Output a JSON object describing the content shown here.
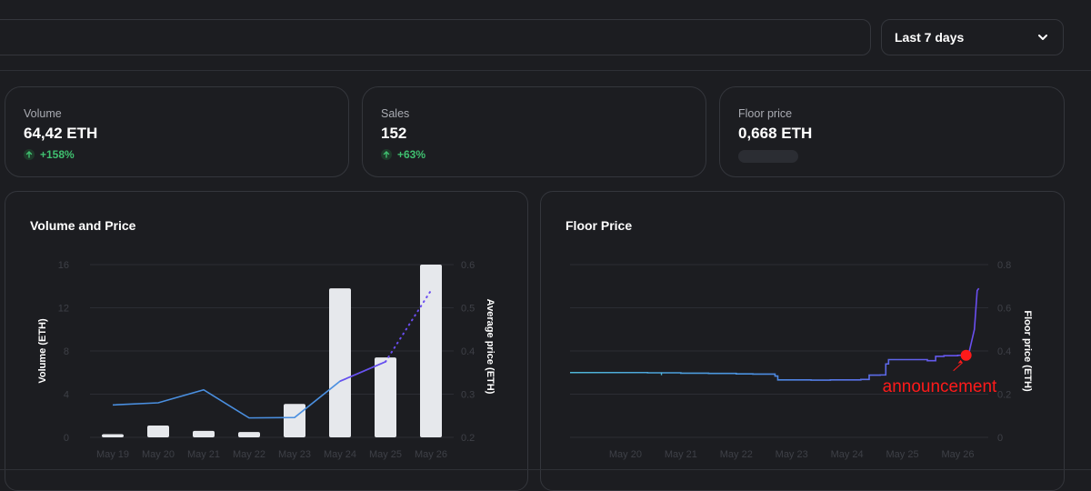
{
  "header": {
    "range_label": "Last 7 days",
    "range_icon": "chevron-down-icon"
  },
  "stats": [
    {
      "label": "Volume",
      "value": "64,42 ETH",
      "change": "+158%"
    },
    {
      "label": "Sales",
      "value": "152",
      "change": "+63%"
    },
    {
      "label": "Floor price",
      "value": "0,668 ETH",
      "change": ""
    }
  ],
  "colors": {
    "positive": "#3fbf6f",
    "bar": "#e6e8ec",
    "line_blue": "#4a8fe0",
    "line_purple": "#6a4df0",
    "annotation": "#ff1a1a"
  },
  "chart_data": [
    {
      "type": "bar",
      "title": "Volume and Price",
      "categories": [
        "May 19",
        "May 20",
        "May 21",
        "May 22",
        "May 23",
        "May 24",
        "May 25",
        "May 26"
      ],
      "series": [
        {
          "name": "",
          "axis": "left",
          "kind": "bar",
          "values": [
            0.3,
            1.1,
            0.6,
            0.5,
            3.1,
            13.8,
            7.4,
            16
          ]
        },
        {
          "name": "",
          "axis": "right",
          "kind": "line",
          "values": [
            0.275,
            0.28,
            0.31,
            0.245,
            0.246,
            0.33,
            0.375,
            0.54
          ]
        }
      ],
      "ylabel": "Volume (ETH)",
      "ylabel_right": "Average price (ETH)",
      "yticks": [
        "0",
        "4",
        "8",
        "12",
        "16"
      ],
      "yticks_right": [
        "0.2",
        "0.3",
        "0.4",
        "0.5",
        "0.6"
      ],
      "ylim": [
        0,
        16
      ],
      "ylim_right": [
        0.2,
        0.6
      ],
      "grid": true
    },
    {
      "type": "line",
      "title": "Floor Price",
      "xticks": [
        "May 20",
        "May 21",
        "May 22",
        "May 23",
        "May 24",
        "May 25",
        "May 26"
      ],
      "ylabel_right": "Floor price (ETH)",
      "yticks_right": [
        "0",
        "0.2",
        "0.4",
        "0.6",
        "0.8"
      ],
      "ylim_right": [
        0,
        0.8
      ],
      "grid": true,
      "x": [
        19.0,
        19.5,
        19.8,
        20.0,
        20.4,
        20.85,
        21.0,
        21.5,
        22.0,
        22.3,
        22.7,
        22.75,
        23.05,
        23.3,
        23.35,
        23.6,
        23.7,
        24.0,
        24.25,
        24.4,
        24.6,
        24.7,
        24.75,
        25.0,
        25.2,
        25.4,
        25.45,
        25.6,
        25.7,
        25.75,
        26.0,
        26.1,
        26.2,
        26.3,
        26.35,
        26.38
      ],
      "values": [
        0.3,
        0.3,
        0.3,
        0.3,
        0.299,
        0.299,
        0.297,
        0.296,
        0.294,
        0.293,
        0.284,
        0.266,
        0.266,
        0.266,
        0.265,
        0.265,
        0.266,
        0.266,
        0.268,
        0.288,
        0.289,
        0.34,
        0.36,
        0.36,
        0.36,
        0.36,
        0.355,
        0.375,
        0.375,
        0.378,
        0.38,
        0.38,
        0.39,
        0.5,
        0.68,
        0.69
      ],
      "annotations": [
        {
          "text": "announcement",
          "x": 26.15,
          "y": 0.38
        }
      ]
    }
  ]
}
